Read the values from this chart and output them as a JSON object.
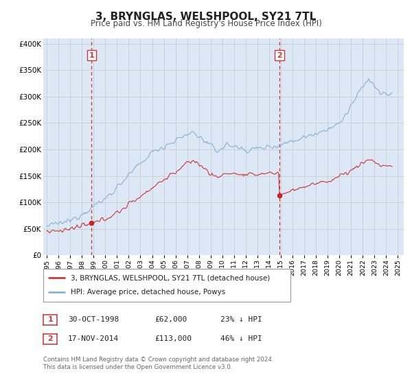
{
  "title": "3, BRYNGLAS, WELSHPOOL, SY21 7TL",
  "subtitle": "Price paid vs. HM Land Registry's House Price Index (HPI)",
  "legend_line1": "3, BRYNGLAS, WELSHPOOL, SY21 7TL (detached house)",
  "legend_line2": "HPI: Average price, detached house, Powys",
  "footnote1": "Contains HM Land Registry data © Crown copyright and database right 2024.",
  "footnote2": "This data is licensed under the Open Government Licence v3.0.",
  "marker1_date": "30-OCT-1998",
  "marker1_price": "£62,000",
  "marker1_hpi": "23% ↓ HPI",
  "marker2_date": "17-NOV-2014",
  "marker2_price": "£113,000",
  "marker2_hpi": "46% ↓ HPI",
  "red_color": "#cc2222",
  "blue_color": "#7aacd6",
  "grid_color": "#cccccc",
  "plot_bg": "#dce8f5",
  "vline_color": "#cc3333",
  "marker1_x": 1998.83,
  "marker1_y": 62000,
  "marker2_x": 2014.88,
  "marker2_y": 113000,
  "ylim": [
    0,
    410000
  ],
  "xlim_start": 1994.7,
  "xlim_end": 2025.5
}
